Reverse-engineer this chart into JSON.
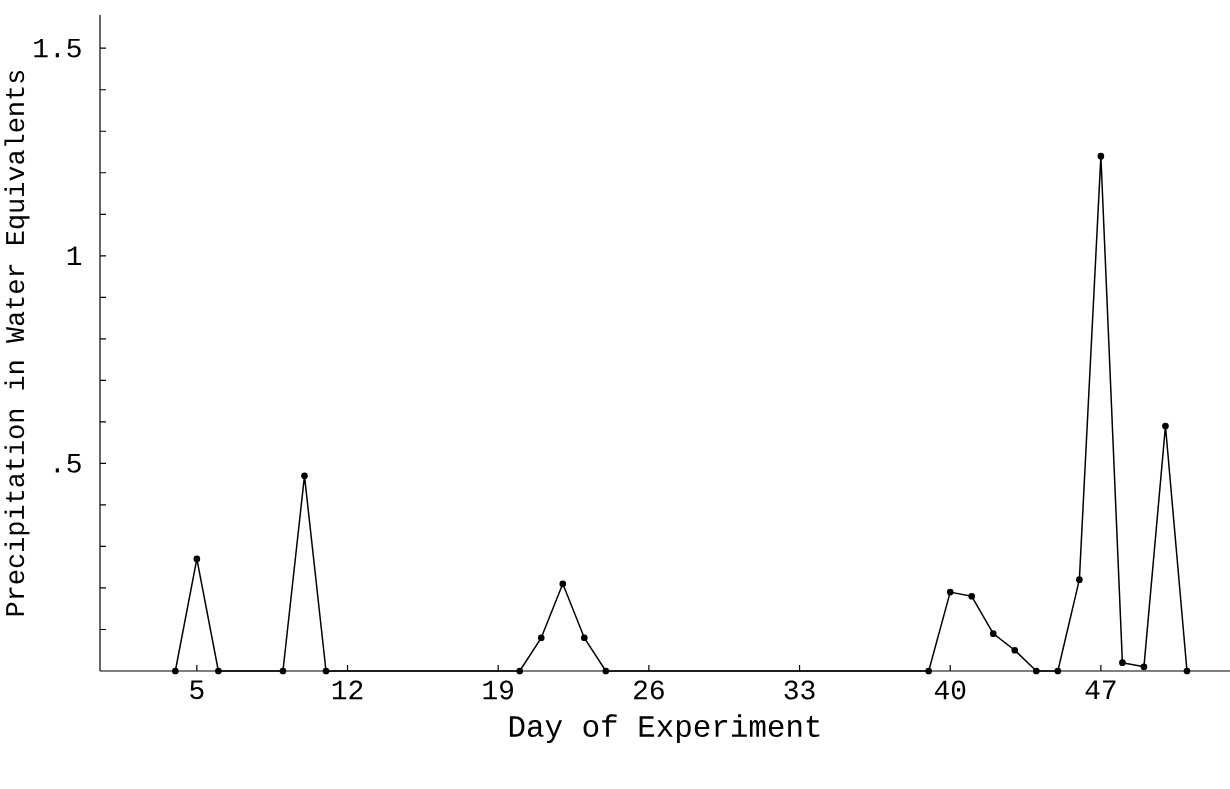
{
  "chart_data": {
    "type": "line",
    "xlabel": "Day of Experiment",
    "ylabel": "Precipitation in Water Equivalents",
    "x": [
      4,
      5,
      6,
      9,
      10,
      11,
      20,
      21,
      22,
      23,
      24,
      39,
      40,
      41,
      42,
      43,
      44,
      45,
      46,
      47,
      48,
      49,
      50,
      51
    ],
    "series": [
      {
        "color": "#000000",
        "values": [
          0,
          0.27,
          0,
          0,
          0.47,
          0,
          0,
          0.08,
          0.21,
          0.08,
          0,
          0,
          0.19,
          0.18,
          0.09,
          0.05,
          0,
          0,
          0.22,
          1.24,
          0.02,
          0.01,
          0.59,
          0
        ]
      }
    ],
    "xlim": [
      0.5,
      53
    ],
    "ylim": [
      0,
      1.58
    ],
    "xticks": [
      5,
      12,
      19,
      26,
      33,
      40,
      47
    ],
    "yticks": [
      {
        "value": 0.1,
        "label": null
      },
      {
        "value": 0.2,
        "label": null
      },
      {
        "value": 0.3,
        "label": null
      },
      {
        "value": 0.4,
        "label": null
      },
      {
        "value": 0.5,
        "label": ".5"
      },
      {
        "value": 0.6,
        "label": null
      },
      {
        "value": 0.7,
        "label": null
      },
      {
        "value": 0.8,
        "label": null
      },
      {
        "value": 0.9,
        "label": null
      },
      1,
      {
        "value": 1.1,
        "label": null
      },
      {
        "value": 1.2,
        "label": null
      },
      {
        "value": 1.3,
        "label": null
      },
      {
        "value": 1.4,
        "label": null
      },
      {
        "value": 1.5,
        "label": "1.5"
      }
    ],
    "marker": "circle",
    "line_style": "solid"
  }
}
